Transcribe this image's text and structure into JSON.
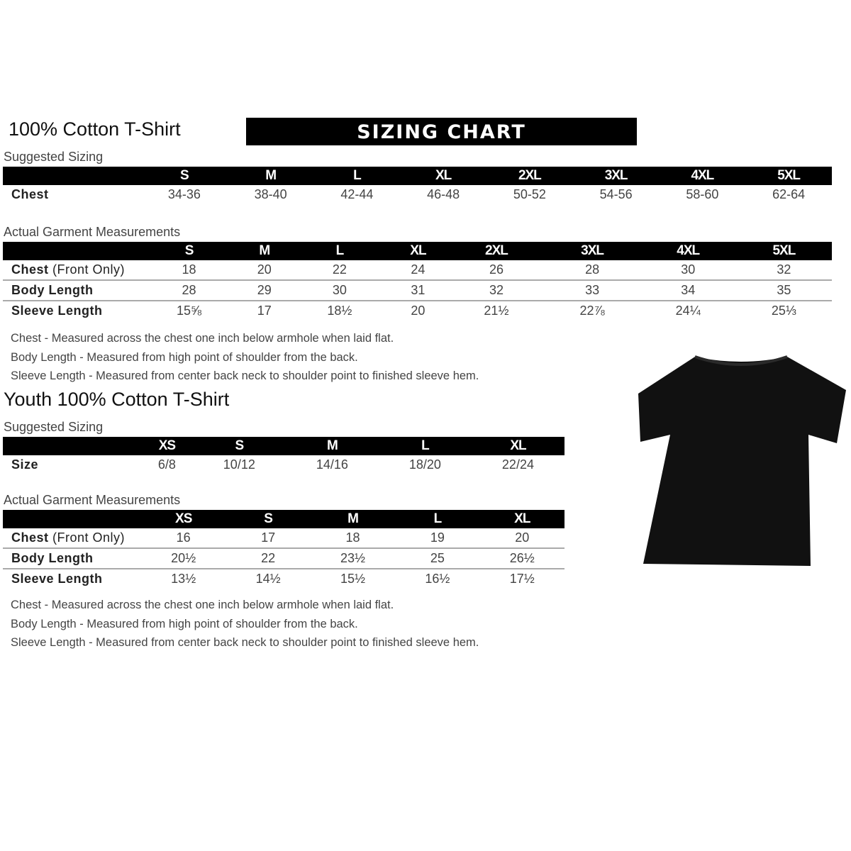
{
  "adult": {
    "title": "100% Cotton T-Shirt",
    "banner": "SIZING CHART",
    "suggested_label": "Suggested Sizing",
    "actual_label": "Actual Garment Measurements",
    "sizes": [
      "S",
      "M",
      "L",
      "XL",
      "2XL",
      "3XL",
      "4XL",
      "5XL"
    ],
    "suggested_rows": [
      {
        "label": "Chest",
        "values": [
          "34-36",
          "38-40",
          "42-44",
          "46-48",
          "50-52",
          "54-56",
          "58-60",
          "62-64"
        ]
      }
    ],
    "actual_rows": [
      {
        "label": "Chest",
        "label_suffix": "(Front Only)",
        "values": [
          "18",
          "20",
          "22",
          "24",
          "26",
          "28",
          "30",
          "32"
        ]
      },
      {
        "label": "Body Length",
        "label_suffix": "",
        "values": [
          "28",
          "29",
          "30",
          "31",
          "32",
          "33",
          "34",
          "35"
        ]
      },
      {
        "label": "Sleeve Length",
        "label_suffix": "",
        "values": [
          "15⅝",
          "17",
          "18½",
          "20",
          "21½",
          "22⅞",
          "24¼",
          "25⅓"
        ]
      }
    ],
    "notes": [
      "Chest - Measured across the chest one inch below armhole when laid flat.",
      "Body Length - Measured from high point of shoulder from the back.",
      "Sleeve Length - Measured from center back neck to shoulder point to finished sleeve hem."
    ]
  },
  "youth": {
    "title": "Youth 100% Cotton T-Shirt",
    "suggested_label": "Suggested Sizing",
    "actual_label": "Actual Garment Measurements",
    "sizes": [
      "XS",
      "S",
      "M",
      "L",
      "XL"
    ],
    "suggested_rows": [
      {
        "label": "Size",
        "values": [
          "6/8",
          "10/12",
          "14/16",
          "18/20",
          "22/24"
        ]
      }
    ],
    "actual_rows": [
      {
        "label": "Chest",
        "label_suffix": "(Front Only)",
        "values": [
          "16",
          "17",
          "18",
          "19",
          "20"
        ]
      },
      {
        "label": "Body Length",
        "label_suffix": "",
        "values": [
          "20½",
          "22",
          "23½",
          "25",
          "26½"
        ]
      },
      {
        "label": "Sleeve Length",
        "label_suffix": "",
        "values": [
          "13½",
          "14½",
          "15½",
          "16½",
          "17½"
        ]
      }
    ],
    "notes": [
      "Chest - Measured across the chest one inch below armhole when laid flat.",
      "Body Length - Measured from high point of shoulder from the back.",
      "Sleeve Length - Measured from center back neck to shoulder point to finished sleeve hem."
    ]
  },
  "shirt": {
    "icon": "tshirt-icon",
    "color": "#111111"
  }
}
